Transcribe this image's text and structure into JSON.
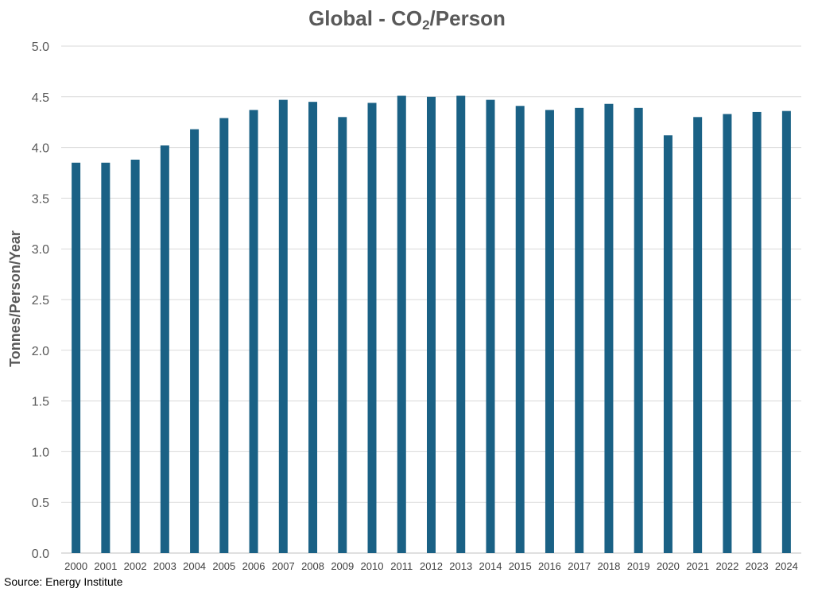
{
  "chart_data": {
    "type": "bar",
    "title": {
      "prefix": "Global - CO",
      "subscript": "2",
      "suffix": "/Person"
    },
    "xlabel": "",
    "ylabel": "Tonnes/Person/Year",
    "ylim": [
      0,
      5
    ],
    "yticks": [
      "0.0",
      "0.5",
      "1.0",
      "1.5",
      "2.0",
      "2.5",
      "3.0",
      "3.5",
      "4.0",
      "4.5",
      "5.0"
    ],
    "grid": true,
    "categories": [
      "2000",
      "2001",
      "2002",
      "2003",
      "2004",
      "2005",
      "2006",
      "2007",
      "2008",
      "2009",
      "2010",
      "2011",
      "2012",
      "2013",
      "2014",
      "2015",
      "2016",
      "2017",
      "2018",
      "2019",
      "2020",
      "2021",
      "2022",
      "2023",
      "2024"
    ],
    "values": [
      3.85,
      3.85,
      3.88,
      4.02,
      4.18,
      4.29,
      4.37,
      4.47,
      4.45,
      4.3,
      4.44,
      4.51,
      4.5,
      4.51,
      4.47,
      4.41,
      4.37,
      4.39,
      4.43,
      4.39,
      4.12,
      4.3,
      4.33,
      4.35,
      4.36
    ],
    "bar_color": "#1a6185"
  },
  "source": "Source: Energy Institute"
}
